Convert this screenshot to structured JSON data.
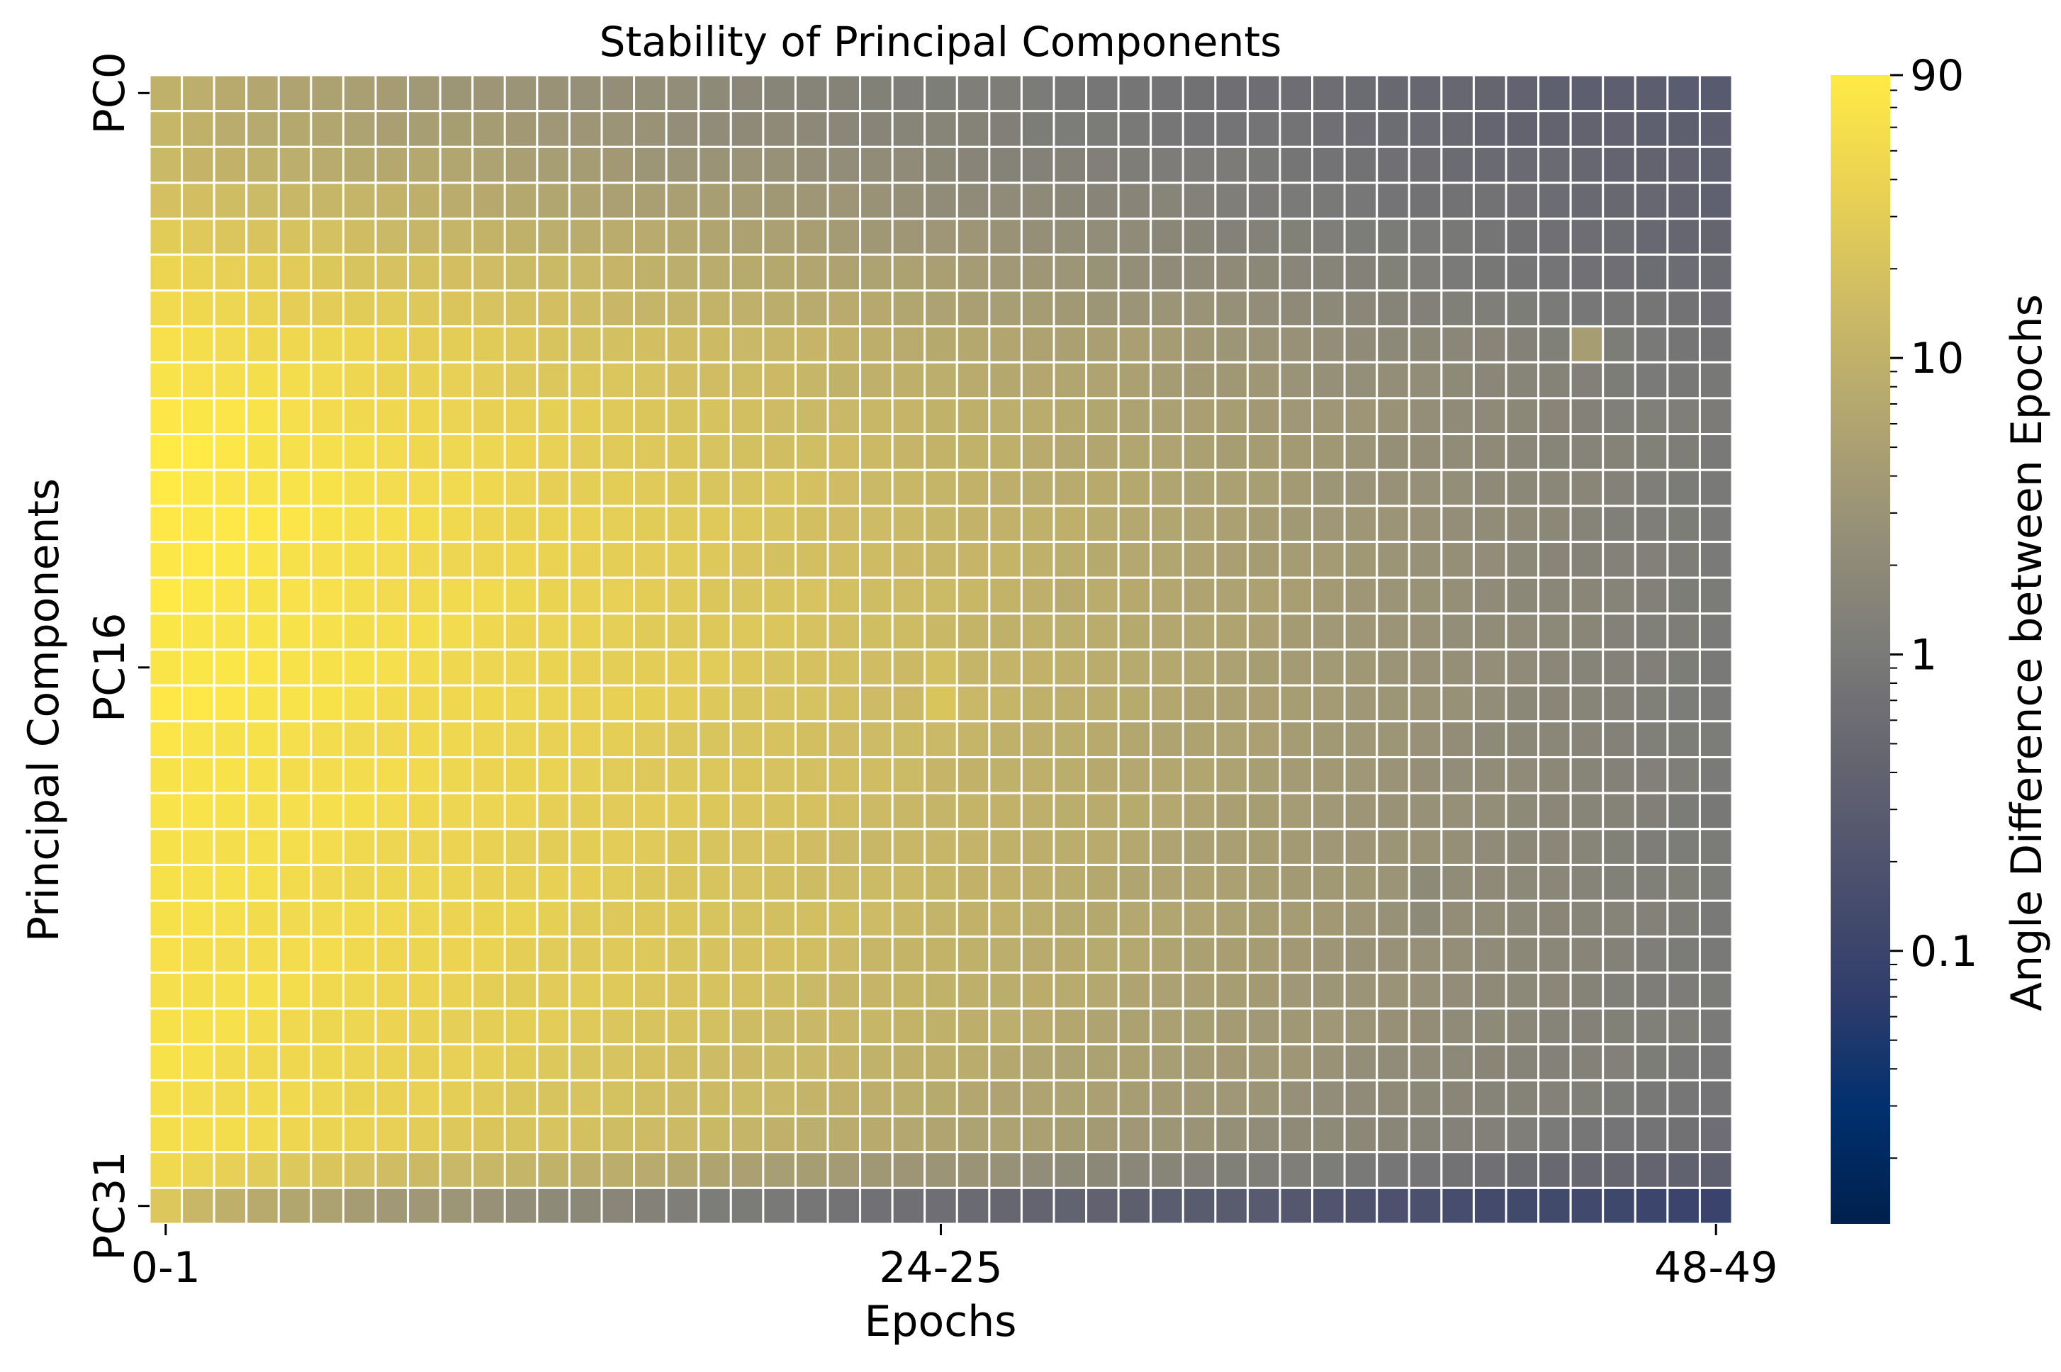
{
  "chart_data": {
    "type": "heatmap",
    "title": "Stability of Principal Components",
    "xlabel": "Epochs",
    "ylabel": "Principal Components",
    "rows": 32,
    "cols": 49,
    "row_labels_prefix": "PC",
    "col_labels_format": "{i}-{i+1}",
    "x_tick_labels": [
      {
        "col": 0,
        "label": "0-1"
      },
      {
        "col": 24,
        "label": "24-25"
      },
      {
        "col": 48,
        "label": "48-49"
      }
    ],
    "y_tick_labels": [
      {
        "row": 0,
        "label": "PC0"
      },
      {
        "row": 16,
        "label": "PC16"
      },
      {
        "row": 31,
        "label": "PC31"
      }
    ],
    "grid": true,
    "colorbar": {
      "label": "Angle Difference between Epochs",
      "scale": "log",
      "colormap": "cividis",
      "vmin": 0.012,
      "vmax": 90,
      "ticks": [
        {
          "value": 90,
          "label": "90"
        },
        {
          "value": 10,
          "label": "10"
        },
        {
          "value": 1,
          "label": "1"
        },
        {
          "value": 0.1,
          "label": "0.1"
        }
      ]
    },
    "value_model": {
      "description_units": "degrees (log10)",
      "start_log_value_by_row": [
        1.0,
        1.05,
        1.15,
        1.3,
        1.45,
        1.6,
        1.7,
        1.8,
        1.85,
        1.9,
        1.95,
        1.95,
        1.95,
        1.9,
        1.9,
        1.9,
        1.9,
        1.9,
        1.85,
        1.85,
        1.85,
        1.8,
        1.8,
        1.8,
        1.8,
        1.8,
        1.8,
        1.8,
        1.8,
        1.8,
        1.65,
        1.35
      ],
      "end_log_value_by_row": [
        -0.55,
        -0.5,
        -0.45,
        -0.4,
        -0.35,
        -0.3,
        -0.2,
        -0.1,
        -0.05,
        0.0,
        0.0,
        0.0,
        0.0,
        0.0,
        0.0,
        0.0,
        0.0,
        0.0,
        0.0,
        0.0,
        0.0,
        0.0,
        0.0,
        0.0,
        0.0,
        0.0,
        0.0,
        -0.05,
        -0.1,
        -0.2,
        -0.45,
        -1.05
      ],
      "curve_exponent_by_row": [
        0.75,
        0.8,
        0.85,
        0.9,
        0.95,
        1.0,
        1.0,
        1.05,
        1.05,
        1.1,
        1.1,
        1.15,
        1.2,
        1.25,
        1.3,
        1.3,
        1.3,
        1.3,
        1.3,
        1.3,
        1.3,
        1.3,
        1.3,
        1.3,
        1.25,
        1.2,
        1.15,
        1.1,
        1.05,
        1.0,
        0.85,
        0.6
      ],
      "bright_anomalies": [
        {
          "row": 7,
          "col": 44,
          "log_value": 0.65
        },
        {
          "row": 16,
          "col": 24,
          "log_value": 1.25
        },
        {
          "row": 17,
          "col": 24,
          "log_value": 1.35
        },
        {
          "row": 15,
          "col": 28,
          "log_value": 0.95
        },
        {
          "row": 14,
          "col": 28,
          "log_value": 0.9
        },
        {
          "row": 22,
          "col": 39,
          "log_value": 0.3
        },
        {
          "row": 23,
          "col": 39,
          "log_value": 0.3
        }
      ]
    }
  }
}
